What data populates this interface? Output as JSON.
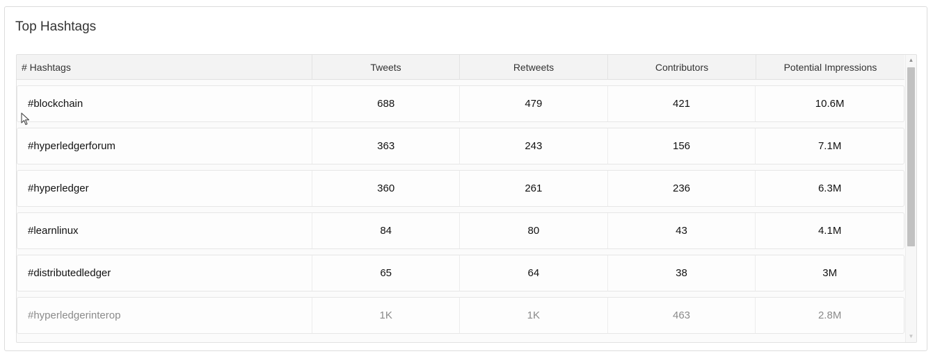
{
  "panel": {
    "title": "Top Hashtags"
  },
  "table": {
    "headers": [
      "# Hashtags",
      "Tweets",
      "Retweets",
      "Contributors",
      "Potential Impressions"
    ],
    "rows": [
      [
        "#blockchain",
        "688",
        "479",
        "421",
        "10.6M"
      ],
      [
        "#hyperledgerforum",
        "363",
        "243",
        "156",
        "7.1M"
      ],
      [
        "#hyperledger",
        "360",
        "261",
        "236",
        "6.3M"
      ],
      [
        "#learnlinux",
        "84",
        "80",
        "43",
        "4.1M"
      ],
      [
        "#distributedledger",
        "65",
        "64",
        "38",
        "3M"
      ],
      [
        "#hyperledgerinterop",
        "1K",
        "1K",
        "463",
        "2.8M"
      ]
    ]
  },
  "icons": {
    "scroll_up": "triangle-up-icon",
    "scroll_down": "triangle-down-icon",
    "cursor": "mouse-pointer-icon"
  }
}
